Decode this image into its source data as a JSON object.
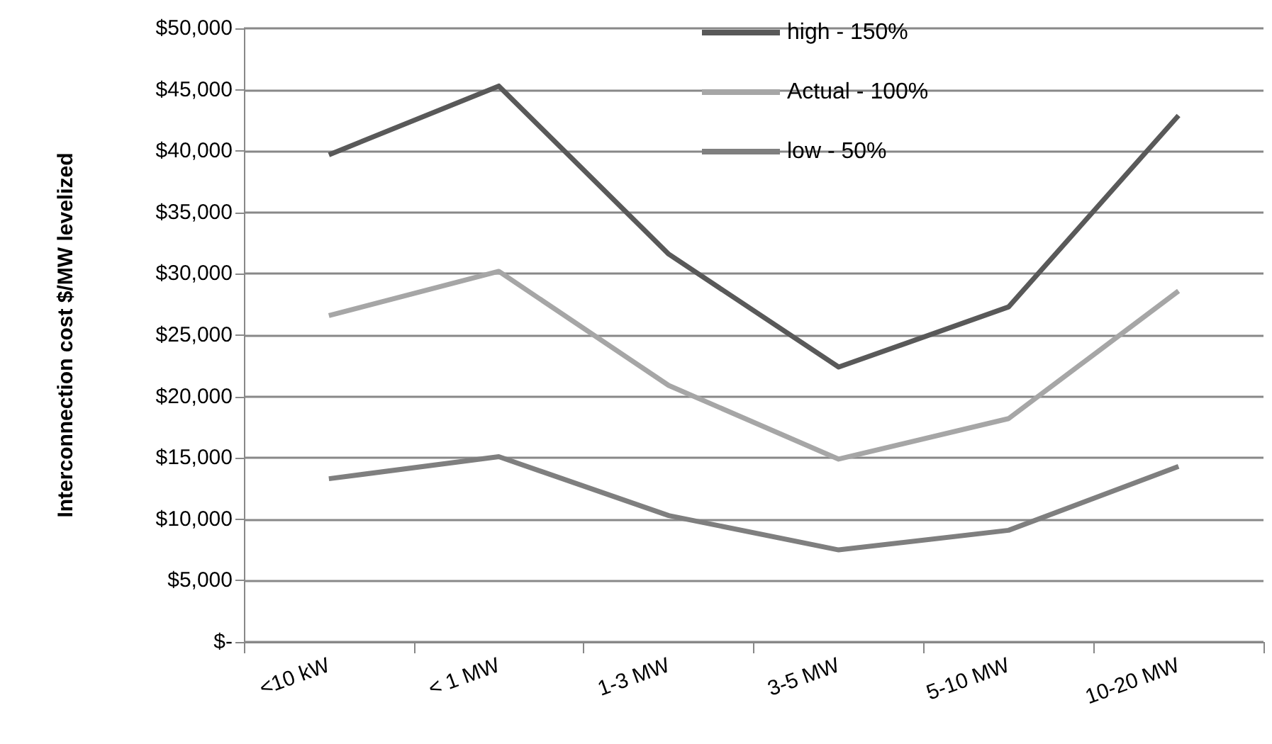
{
  "chart_data": {
    "type": "line",
    "ylabel": "Interconnection cost $/MW levelized",
    "categories": [
      "<10 kW",
      "< 1 MW",
      "1-3 MW",
      "3-5 MW",
      "5-10 MW",
      "10-20 MW"
    ],
    "series": [
      {
        "name": "high - 150%",
        "color": "#595959",
        "values": [
          39700,
          45300,
          31600,
          22400,
          27300,
          42900
        ]
      },
      {
        "name": "Actual - 100%",
        "color": "#a6a6a6",
        "values": [
          26600,
          30200,
          20900,
          14900,
          18200,
          28600
        ]
      },
      {
        "name": "low - 50%",
        "color": "#7f7f7f",
        "values": [
          13300,
          15100,
          10300,
          7500,
          9100,
          14300
        ]
      }
    ],
    "ylim": [
      0,
      50000
    ],
    "yticks": [
      {
        "value": 0,
        "label": "$-"
      },
      {
        "value": 5000,
        "label": "$5,000"
      },
      {
        "value": 10000,
        "label": "$10,000"
      },
      {
        "value": 15000,
        "label": "$15,000"
      },
      {
        "value": 20000,
        "label": "$20,000"
      },
      {
        "value": 25000,
        "label": "$25,000"
      },
      {
        "value": 30000,
        "label": "$30,000"
      },
      {
        "value": 35000,
        "label": "$35,000"
      },
      {
        "value": 40000,
        "label": "$40,000"
      },
      {
        "value": 45000,
        "label": "$45,000"
      },
      {
        "value": 50000,
        "label": "$50,000"
      }
    ],
    "grid": "y",
    "legend": "top right",
    "marker": "none",
    "line_style": "solid"
  }
}
